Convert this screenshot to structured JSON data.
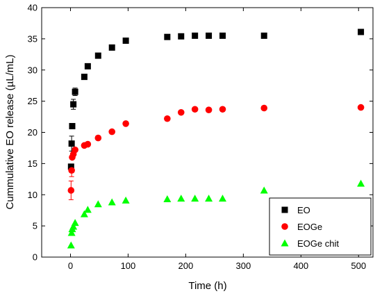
{
  "chart_data": {
    "type": "scatter",
    "title": "",
    "xlabel": "Time (h)",
    "ylabel": "Cummulative EO release (µL/mL)",
    "xlim": [
      -50,
      525
    ],
    "ylim": [
      0,
      40
    ],
    "xticks": [
      0,
      100,
      200,
      300,
      400,
      500
    ],
    "yticks": [
      0,
      5,
      10,
      15,
      20,
      25,
      30,
      35,
      40
    ],
    "grid": false,
    "legend_position": "bottom-right",
    "series": [
      {
        "name": "EO",
        "marker": "square",
        "color": "#000000",
        "x": [
          1,
          2,
          3,
          5,
          8,
          24,
          30,
          48,
          72,
          96,
          168,
          192,
          216,
          240,
          264,
          336,
          504
        ],
        "y": [
          14.5,
          18.2,
          21,
          24.5,
          26.5,
          28.9,
          30.6,
          32.3,
          33.6,
          34.7,
          35.3,
          35.4,
          35.5,
          35.5,
          35.5,
          35.5,
          36.1
        ],
        "err": [
          0,
          1.2,
          0,
          0.8,
          0.6,
          0,
          0,
          0,
          0,
          0.3,
          0,
          0,
          0,
          0,
          0,
          0,
          0
        ]
      },
      {
        "name": "EOGe",
        "marker": "circle",
        "color": "#ff0000",
        "x": [
          1,
          2,
          3,
          5,
          8,
          24,
          30,
          48,
          72,
          96,
          168,
          192,
          216,
          240,
          264,
          336,
          504
        ],
        "y": [
          10.7,
          13.9,
          16,
          16.5,
          17.2,
          17.9,
          18.1,
          19.1,
          20.1,
          21.4,
          22.2,
          23.2,
          23.7,
          23.6,
          23.7,
          23.9,
          24
        ],
        "err": [
          1.5,
          1,
          0,
          0,
          0,
          0,
          0,
          0,
          0,
          0,
          0,
          0,
          0,
          0,
          0,
          0,
          0
        ]
      },
      {
        "name": "EOGe chit",
        "marker": "triangle",
        "color": "#00ff00",
        "x": [
          1,
          2,
          3,
          5,
          8,
          24,
          30,
          48,
          72,
          96,
          168,
          192,
          216,
          240,
          264,
          336,
          504
        ],
        "y": [
          1.9,
          3.9,
          4.5,
          4.9,
          5.5,
          6.9,
          7.6,
          8.5,
          8.8,
          9.1,
          9.3,
          9.4,
          9.4,
          9.4,
          9.4,
          10.7,
          11.8
        ],
        "err": [
          0,
          0,
          0,
          0,
          0,
          0,
          0,
          0,
          0,
          0,
          0,
          0,
          0,
          0,
          0,
          0,
          0
        ]
      }
    ]
  }
}
